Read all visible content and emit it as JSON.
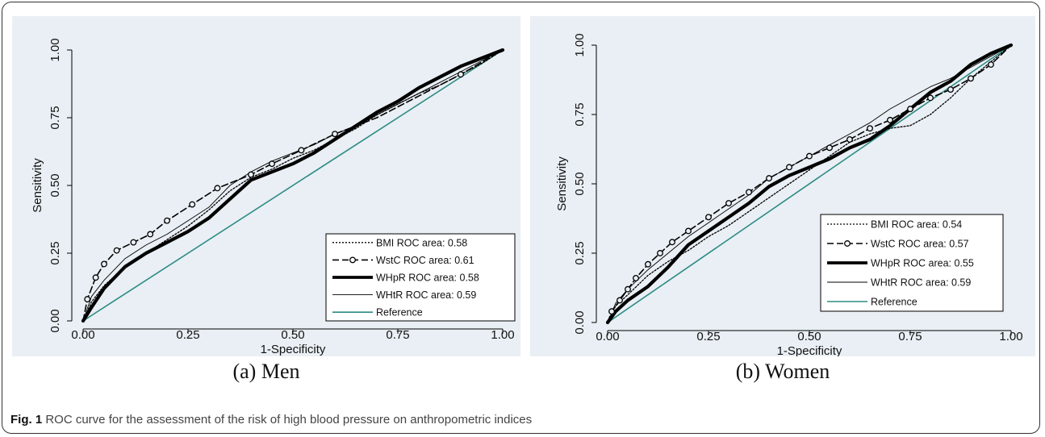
{
  "figure": {
    "label": "Fig. 1",
    "caption_text": "ROC curve for the assessment of the risk of high blood pressure on anthropometric indices"
  },
  "colors": {
    "panel_bg": "#e9eff4",
    "reference": "#2e8b84",
    "curves": "#000000"
  },
  "chart_data": [
    {
      "type": "line",
      "subcaption": "(a) Men",
      "xlabel": "1-Specificity",
      "ylabel": "Sensitivity",
      "xlim": [
        0,
        1
      ],
      "ylim": [
        0,
        1
      ],
      "xticks": [
        "0.00",
        "0.25",
        "0.50",
        "0.75",
        "1.00"
      ],
      "yticks": [
        "0.00",
        "0.25",
        "0.50",
        "0.75",
        "1.00"
      ],
      "legend_position": "bottom-right",
      "series": [
        {
          "name": "BMI ROC area: 0.58",
          "style": "dotted",
          "x": [
            0,
            0.02,
            0.05,
            0.1,
            0.15,
            0.2,
            0.25,
            0.3,
            0.35,
            0.4,
            0.45,
            0.5,
            0.55,
            0.6,
            0.65,
            0.7,
            0.75,
            0.8,
            0.85,
            0.9,
            0.95,
            1.0
          ],
          "y": [
            0,
            0.07,
            0.13,
            0.2,
            0.25,
            0.3,
            0.35,
            0.41,
            0.48,
            0.53,
            0.56,
            0.6,
            0.63,
            0.67,
            0.71,
            0.76,
            0.8,
            0.84,
            0.87,
            0.91,
            0.95,
            1.0
          ]
        },
        {
          "name": "WstC ROC area: 0.61",
          "style": "dashed-circle",
          "x": [
            0,
            0.01,
            0.03,
            0.05,
            0.08,
            0.12,
            0.16,
            0.2,
            0.26,
            0.32,
            0.4,
            0.45,
            0.52,
            0.6,
            0.7,
            0.8,
            0.9,
            1.0
          ],
          "y": [
            0,
            0.08,
            0.16,
            0.21,
            0.26,
            0.29,
            0.32,
            0.37,
            0.43,
            0.49,
            0.54,
            0.58,
            0.63,
            0.69,
            0.75,
            0.83,
            0.91,
            1.0
          ],
          "markers_x": [
            0.01,
            0.03,
            0.05,
            0.08,
            0.12,
            0.16,
            0.2,
            0.26,
            0.32,
            0.4,
            0.45,
            0.52,
            0.6,
            0.9
          ],
          "markers_y": [
            0.08,
            0.16,
            0.21,
            0.26,
            0.29,
            0.32,
            0.37,
            0.43,
            0.49,
            0.54,
            0.58,
            0.63,
            0.69,
            0.91
          ]
        },
        {
          "name": "WHpR ROC area: 0.58",
          "style": "thick",
          "x": [
            0,
            0.02,
            0.05,
            0.1,
            0.15,
            0.2,
            0.25,
            0.3,
            0.35,
            0.4,
            0.45,
            0.5,
            0.55,
            0.6,
            0.65,
            0.7,
            0.75,
            0.8,
            0.85,
            0.9,
            0.95,
            1.0
          ],
          "y": [
            0,
            0.05,
            0.12,
            0.2,
            0.25,
            0.29,
            0.33,
            0.38,
            0.45,
            0.52,
            0.55,
            0.58,
            0.62,
            0.67,
            0.72,
            0.77,
            0.81,
            0.86,
            0.9,
            0.94,
            0.97,
            1.0
          ]
        },
        {
          "name": "WHtR ROC area: 0.59",
          "style": "thin",
          "x": [
            0,
            0.02,
            0.05,
            0.1,
            0.15,
            0.2,
            0.25,
            0.3,
            0.35,
            0.4,
            0.45,
            0.5,
            0.55,
            0.6,
            0.65,
            0.7,
            0.75,
            0.8,
            0.85,
            0.9,
            0.95,
            1.0
          ],
          "y": [
            0,
            0.09,
            0.15,
            0.23,
            0.28,
            0.32,
            0.37,
            0.42,
            0.5,
            0.55,
            0.59,
            0.62,
            0.65,
            0.69,
            0.72,
            0.76,
            0.8,
            0.84,
            0.88,
            0.92,
            0.96,
            1.0
          ]
        },
        {
          "name": "Reference",
          "style": "reference",
          "x": [
            0,
            1
          ],
          "y": [
            0,
            1
          ]
        }
      ]
    },
    {
      "type": "line",
      "subcaption": "(b) Women",
      "xlabel": "1-Specificity",
      "ylabel": "Sensitivity",
      "xlim": [
        0,
        1
      ],
      "ylim": [
        0,
        1
      ],
      "xticks": [
        "0.00",
        "0.25",
        "0.50",
        "0.75",
        "1.00"
      ],
      "yticks": [
        "0.00",
        "0.25",
        "0.50",
        "0.75",
        "1.00"
      ],
      "legend_position": "bottom-right",
      "series": [
        {
          "name": "BMI ROC area: 0.54",
          "style": "dotted",
          "x": [
            0,
            0.02,
            0.05,
            0.1,
            0.15,
            0.2,
            0.25,
            0.3,
            0.35,
            0.4,
            0.45,
            0.5,
            0.55,
            0.6,
            0.65,
            0.7,
            0.75,
            0.8,
            0.85,
            0.9,
            0.95,
            1.0
          ],
          "y": [
            0,
            0.06,
            0.1,
            0.17,
            0.22,
            0.26,
            0.31,
            0.35,
            0.4,
            0.45,
            0.5,
            0.55,
            0.6,
            0.65,
            0.68,
            0.7,
            0.71,
            0.75,
            0.81,
            0.88,
            0.94,
            1.0
          ]
        },
        {
          "name": "WstC ROC area: 0.57",
          "style": "dashed-circle",
          "x": [
            0,
            0.01,
            0.03,
            0.05,
            0.07,
            0.1,
            0.13,
            0.16,
            0.2,
            0.25,
            0.3,
            0.35,
            0.4,
            0.45,
            0.5,
            0.55,
            0.6,
            0.65,
            0.7,
            0.75,
            0.8,
            0.85,
            0.9,
            0.95,
            1.0
          ],
          "y": [
            0,
            0.04,
            0.08,
            0.12,
            0.16,
            0.21,
            0.25,
            0.29,
            0.33,
            0.38,
            0.43,
            0.47,
            0.52,
            0.56,
            0.6,
            0.63,
            0.66,
            0.7,
            0.73,
            0.77,
            0.81,
            0.84,
            0.88,
            0.93,
            1.0
          ],
          "markers_x": [
            0.01,
            0.03,
            0.05,
            0.07,
            0.1,
            0.13,
            0.16,
            0.2,
            0.25,
            0.3,
            0.35,
            0.4,
            0.45,
            0.5,
            0.55,
            0.6,
            0.65,
            0.7,
            0.75,
            0.8,
            0.85,
            0.9,
            0.95
          ],
          "markers_y": [
            0.04,
            0.08,
            0.12,
            0.16,
            0.21,
            0.25,
            0.29,
            0.33,
            0.38,
            0.43,
            0.47,
            0.52,
            0.56,
            0.6,
            0.63,
            0.66,
            0.7,
            0.73,
            0.77,
            0.81,
            0.84,
            0.88,
            0.93
          ]
        },
        {
          "name": "WHpR ROC area: 0.55",
          "style": "thick",
          "x": [
            0,
            0.02,
            0.05,
            0.1,
            0.15,
            0.2,
            0.25,
            0.3,
            0.35,
            0.4,
            0.45,
            0.5,
            0.55,
            0.6,
            0.65,
            0.7,
            0.75,
            0.8,
            0.85,
            0.9,
            0.95,
            1.0
          ],
          "y": [
            0,
            0.04,
            0.08,
            0.13,
            0.2,
            0.28,
            0.33,
            0.38,
            0.43,
            0.49,
            0.53,
            0.56,
            0.59,
            0.63,
            0.66,
            0.71,
            0.77,
            0.83,
            0.87,
            0.93,
            0.97,
            1.0
          ]
        },
        {
          "name": "WHtR ROC area: 0.59",
          "style": "thin",
          "x": [
            0,
            0.02,
            0.05,
            0.1,
            0.15,
            0.2,
            0.25,
            0.3,
            0.35,
            0.4,
            0.45,
            0.5,
            0.55,
            0.6,
            0.65,
            0.7,
            0.75,
            0.8,
            0.85,
            0.9,
            0.95,
            1.0
          ],
          "y": [
            0,
            0.07,
            0.12,
            0.19,
            0.25,
            0.31,
            0.36,
            0.41,
            0.46,
            0.52,
            0.56,
            0.6,
            0.64,
            0.68,
            0.72,
            0.77,
            0.81,
            0.85,
            0.88,
            0.92,
            0.96,
            1.0
          ]
        },
        {
          "name": "Reference",
          "style": "reference",
          "x": [
            0,
            1
          ],
          "y": [
            0,
            1
          ]
        }
      ]
    }
  ]
}
